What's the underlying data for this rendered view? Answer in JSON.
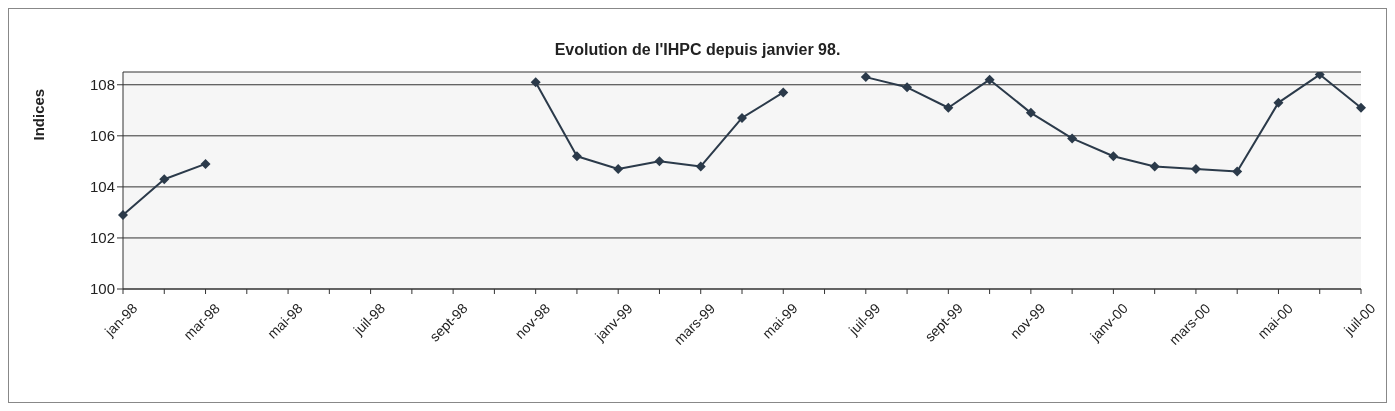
{
  "chart_data": {
    "type": "line",
    "title": "Evolution de l'IHPC depuis janvier 98.",
    "ylabel": "Indices",
    "categories": [
      "jan-98",
      null,
      "mar-98",
      null,
      "mai-98",
      null,
      "juil-98",
      null,
      "sept-98",
      null,
      "nov-98",
      null,
      "janv-99",
      null,
      "mars-99",
      null,
      "mai-99",
      null,
      "juil-99",
      null,
      "sept-99",
      null,
      "nov-99",
      null,
      "janv-00",
      null,
      "mars-00",
      null,
      "mai-00",
      null,
      "juil-00"
    ],
    "series": [
      {
        "color": "#2b3a4a",
        "values": [
          102.9,
          104.3,
          104.9,
          null,
          null,
          null,
          null,
          null,
          null,
          null,
          108.1,
          105.2,
          104.7,
          105.0,
          104.8,
          106.7,
          107.7,
          null,
          108.3,
          107.9,
          107.1,
          108.2,
          106.9,
          105.9,
          105.2,
          104.8,
          104.7,
          104.6,
          107.3,
          108.4,
          107.1
        ]
      }
    ],
    "ylim": [
      100,
      108.5
    ],
    "yticks": [
      100,
      102,
      104,
      106,
      108
    ],
    "grid": "y",
    "marker": "diamond",
    "line_style": "solid",
    "legend": false
  }
}
